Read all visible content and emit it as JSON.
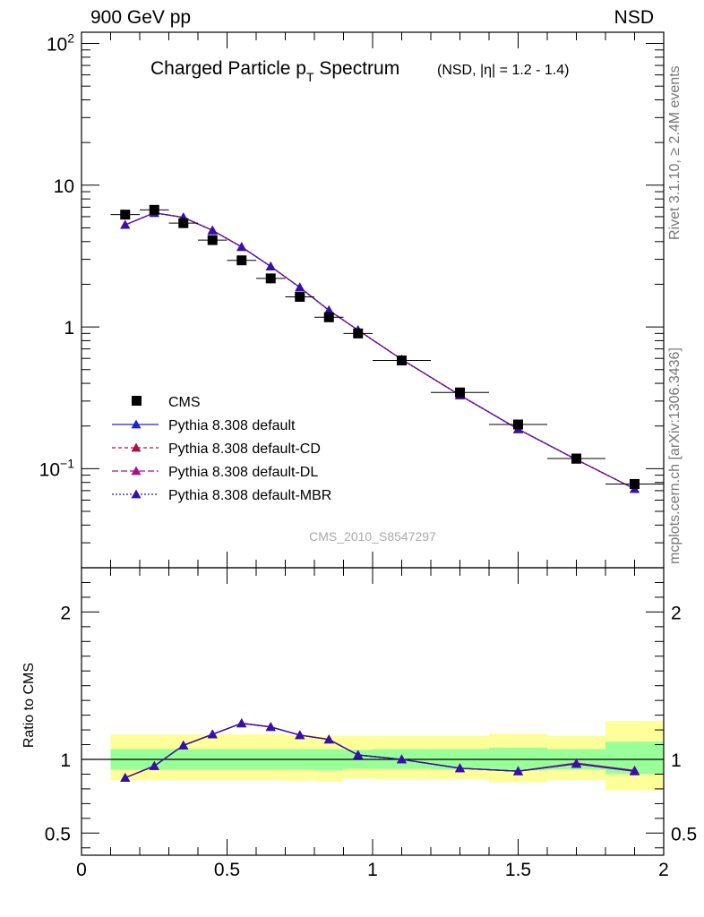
{
  "header": {
    "left": "900 GeV pp",
    "right": "NSD"
  },
  "side_labels": {
    "rivet": "Rivet 3.1.10, ≥ 2.4M events",
    "mcplots": "mcplots.cern.ch [arXiv:1306.3436]"
  },
  "chart_data": [
    {
      "type": "scatter",
      "panel": "main",
      "title_main": "Charged Particle p",
      "title_sub": "T",
      "title_main2": " Spectrum",
      "title_extra": "(NSD, |η| = 1.2 - 1.4)",
      "watermark": "CMS_2010_S8547297",
      "xlim": [
        0,
        2
      ],
      "ylim": [
        0.02,
        120
      ],
      "yscale": "log",
      "y_ticks": [
        {
          "value": 100,
          "base": "10",
          "exp": "2"
        },
        {
          "value": 10,
          "base": "10",
          "exp": ""
        },
        {
          "value": 1,
          "base": "1",
          "exp": ""
        },
        {
          "value": 0.1,
          "base": "10",
          "exp": "−1"
        }
      ],
      "legend_position": "lower-left",
      "series": [
        {
          "name": "CMS",
          "kind": "data",
          "color": "#000000",
          "x": [
            0.15,
            0.25,
            0.35,
            0.45,
            0.55,
            0.65,
            0.75,
            0.85,
            0.95,
            1.1,
            1.3,
            1.5,
            1.7,
            1.9
          ],
          "y": [
            6.2,
            6.7,
            5.4,
            4.1,
            2.95,
            2.2,
            1.63,
            1.17,
            0.9,
            0.58,
            0.345,
            0.205,
            0.118,
            0.078
          ],
          "xerr_low": [
            0.05,
            0.05,
            0.05,
            0.05,
            0.05,
            0.05,
            0.05,
            0.05,
            0.05,
            0.1,
            0.1,
            0.1,
            0.1,
            0.1
          ],
          "xerr_high": [
            0.05,
            0.05,
            0.05,
            0.05,
            0.05,
            0.05,
            0.05,
            0.05,
            0.05,
            0.1,
            0.1,
            0.1,
            0.1,
            0.1
          ]
        },
        {
          "name": "Pythia 8.308 default",
          "kind": "mc",
          "color": "#2222cc",
          "dash": "",
          "x": [
            0.15,
            0.25,
            0.35,
            0.45,
            0.55,
            0.65,
            0.75,
            0.85,
            0.95,
            1.1,
            1.3,
            1.5,
            1.7,
            1.9
          ],
          "y": [
            5.25,
            6.38,
            5.93,
            4.8,
            3.67,
            2.67,
            1.9,
            1.31,
            0.95,
            0.59,
            0.33,
            0.19,
            0.116,
            0.072
          ]
        },
        {
          "name": "Pythia 8.308 default-CD",
          "kind": "mc",
          "color": "#aa1144",
          "dash": "4,3",
          "x": [
            0.15,
            0.25,
            0.35,
            0.45,
            0.55,
            0.65,
            0.75,
            0.85,
            0.95,
            1.1,
            1.3,
            1.5,
            1.7,
            1.9
          ],
          "y": [
            5.25,
            6.38,
            5.93,
            4.8,
            3.67,
            2.67,
            1.9,
            1.31,
            0.95,
            0.59,
            0.33,
            0.19,
            0.116,
            0.072
          ]
        },
        {
          "name": "Pythia 8.308 default-DL",
          "kind": "mc",
          "color": "#aa1188",
          "dash": "7,3",
          "x": [
            0.15,
            0.25,
            0.35,
            0.45,
            0.55,
            0.65,
            0.75,
            0.85,
            0.95,
            1.1,
            1.3,
            1.5,
            1.7,
            1.9
          ],
          "y": [
            5.25,
            6.38,
            5.93,
            4.8,
            3.67,
            2.67,
            1.9,
            1.31,
            0.95,
            0.59,
            0.33,
            0.19,
            0.116,
            0.072
          ]
        },
        {
          "name": "Pythia 8.308 default-MBR",
          "kind": "mc",
          "color": "#3311aa",
          "dash": "2,2",
          "x": [
            0.15,
            0.25,
            0.35,
            0.45,
            0.55,
            0.65,
            0.75,
            0.85,
            0.95,
            1.1,
            1.3,
            1.5,
            1.7,
            1.9
          ],
          "y": [
            5.25,
            6.38,
            5.93,
            4.8,
            3.67,
            2.67,
            1.9,
            1.31,
            0.95,
            0.59,
            0.33,
            0.19,
            0.116,
            0.072
          ]
        }
      ]
    },
    {
      "type": "line",
      "panel": "ratio",
      "ylabel": "Ratio to CMS",
      "xlim": [
        0,
        2
      ],
      "ylim": [
        0.35,
        2.3
      ],
      "y_ticks": [
        0.5,
        1,
        2
      ],
      "x_ticks": [
        0,
        0.5,
        1,
        1.5,
        2
      ],
      "x_tick_labels": [
        "0",
        "0.5",
        "1",
        "1.5",
        "2"
      ],
      "y_tick_labels": [
        "0.5",
        "1",
        "2"
      ],
      "reference": 1,
      "bands": {
        "yellow_color": "#ffff99",
        "green_color": "#99ff99",
        "bins": [
          {
            "x_low": 0.1,
            "x_high": 0.2,
            "yellow": [
              0.86,
              1.17
            ],
            "green": [
              0.93,
              1.07
            ]
          },
          {
            "x_low": 0.2,
            "x_high": 0.3,
            "yellow": [
              0.86,
              1.17
            ],
            "green": [
              0.93,
              1.07
            ]
          },
          {
            "x_low": 0.3,
            "x_high": 0.4,
            "yellow": [
              0.86,
              1.17
            ],
            "green": [
              0.93,
              1.07
            ]
          },
          {
            "x_low": 0.4,
            "x_high": 0.5,
            "yellow": [
              0.86,
              1.17
            ],
            "green": [
              0.93,
              1.07
            ]
          },
          {
            "x_low": 0.5,
            "x_high": 0.6,
            "yellow": [
              0.86,
              1.17
            ],
            "green": [
              0.93,
              1.07
            ]
          },
          {
            "x_low": 0.6,
            "x_high": 0.7,
            "yellow": [
              0.86,
              1.17
            ],
            "green": [
              0.93,
              1.07
            ]
          },
          {
            "x_low": 0.7,
            "x_high": 0.8,
            "yellow": [
              0.855,
              1.165
            ],
            "green": [
              0.93,
              1.07
            ]
          },
          {
            "x_low": 0.8,
            "x_high": 0.9,
            "yellow": [
              0.85,
              1.16
            ],
            "green": [
              0.925,
              1.07
            ]
          },
          {
            "x_low": 0.9,
            "x_high": 1.0,
            "yellow": [
              0.87,
              1.16
            ],
            "green": [
              0.935,
              1.065
            ]
          },
          {
            "x_low": 1.0,
            "x_high": 1.2,
            "yellow": [
              0.865,
              1.16
            ],
            "green": [
              0.935,
              1.07
            ]
          },
          {
            "x_low": 1.2,
            "x_high": 1.4,
            "yellow": [
              0.865,
              1.16
            ],
            "green": [
              0.93,
              1.07
            ]
          },
          {
            "x_low": 1.4,
            "x_high": 1.6,
            "yellow": [
              0.845,
              1.175
            ],
            "green": [
              0.925,
              1.08
            ]
          },
          {
            "x_low": 1.6,
            "x_high": 1.8,
            "yellow": [
              0.86,
              1.16
            ],
            "green": [
              0.93,
              1.07
            ]
          },
          {
            "x_low": 1.8,
            "x_high": 2.0,
            "yellow": [
              0.79,
              1.26
            ],
            "green": [
              0.9,
              1.12
            ]
          }
        ]
      },
      "series": [
        {
          "name": "Pythia 8.308 default",
          "color": "#2222cc",
          "x": [
            0.15,
            0.25,
            0.35,
            0.45,
            0.55,
            0.65,
            0.75,
            0.85,
            0.95,
            1.1,
            1.3,
            1.5,
            1.7,
            1.9
          ],
          "y": [
            0.875,
            0.955,
            1.095,
            1.17,
            1.245,
            1.22,
            1.165,
            1.135,
            1.03,
            1.0,
            0.94,
            0.92,
            0.97,
            0.92
          ]
        },
        {
          "name": "Pythia 8.308 default-CD",
          "color": "#aa1144",
          "x": [
            0.15,
            0.25,
            0.35,
            0.45,
            0.55,
            0.65,
            0.75,
            0.85,
            0.95,
            1.1,
            1.3,
            1.5,
            1.7,
            1.9
          ],
          "y": [
            0.875,
            0.955,
            1.095,
            1.17,
            1.245,
            1.22,
            1.165,
            1.135,
            1.03,
            1.0,
            0.94,
            0.92,
            0.975,
            0.925
          ]
        },
        {
          "name": "Pythia 8.308 default-DL",
          "color": "#aa1188",
          "x": [
            0.15,
            0.25,
            0.35,
            0.45,
            0.55,
            0.65,
            0.75,
            0.85,
            0.95,
            1.1,
            1.3,
            1.5,
            1.7,
            1.9
          ],
          "y": [
            0.875,
            0.955,
            1.095,
            1.17,
            1.245,
            1.22,
            1.165,
            1.135,
            1.03,
            1.0,
            0.94,
            0.92,
            0.975,
            0.925
          ]
        },
        {
          "name": "Pythia 8.308 default-MBR",
          "color": "#3311aa",
          "x": [
            0.15,
            0.25,
            0.35,
            0.45,
            0.55,
            0.65,
            0.75,
            0.85,
            0.95,
            1.1,
            1.3,
            1.5,
            1.7,
            1.9
          ],
          "y": [
            0.875,
            0.955,
            1.095,
            1.17,
            1.245,
            1.22,
            1.165,
            1.135,
            1.03,
            1.0,
            0.94,
            0.92,
            0.97,
            0.92
          ]
        }
      ]
    }
  ]
}
